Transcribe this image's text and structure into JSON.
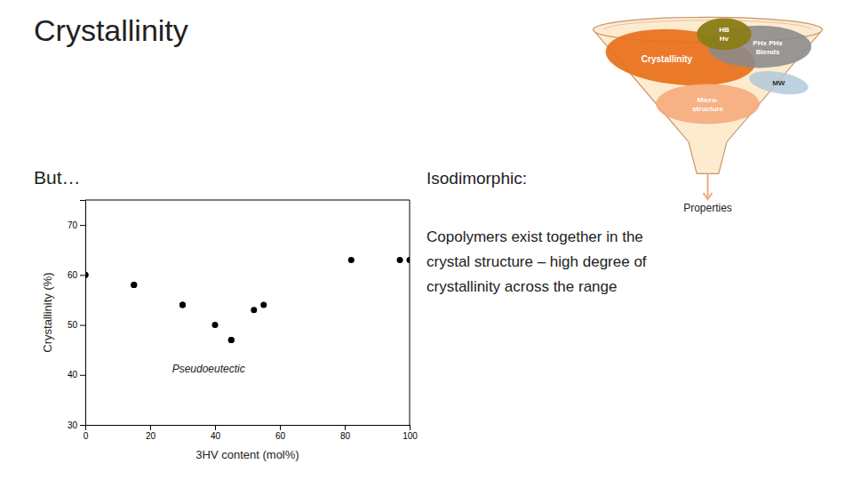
{
  "chart_data": {
    "type": "scatter",
    "title": "Crystallinity",
    "x": [
      0,
      0,
      15,
      15,
      30,
      30,
      40,
      45,
      45,
      52,
      55,
      82,
      97,
      100
    ],
    "values": [
      60,
      60,
      58,
      58,
      54,
      54,
      50,
      47,
      47,
      53,
      54,
      63,
      63,
      63
    ],
    "color": "black",
    "xlabel": "3HV content (mol%)",
    "ylabel": "Crystallinity (%)",
    "xlim": [
      0,
      100
    ],
    "ylim": [
      30,
      75
    ],
    "xticks": [
      0,
      20,
      40,
      60,
      80,
      100
    ],
    "yticks": [
      30,
      40,
      50,
      60,
      70
    ],
    "grid": false,
    "annotations": [
      "But…",
      "Isodimorphic:",
      "Properties",
      "Copolymers exist together in the\ncrystal structure – high degree of\ncrystallinity across the range",
      "Pseudoeutectic",
      "Crystallinity",
      "PHx PHx\nBlends",
      "HB\nHv",
      "MW",
      "Micro-\nstructure"
    ]
  }
}
